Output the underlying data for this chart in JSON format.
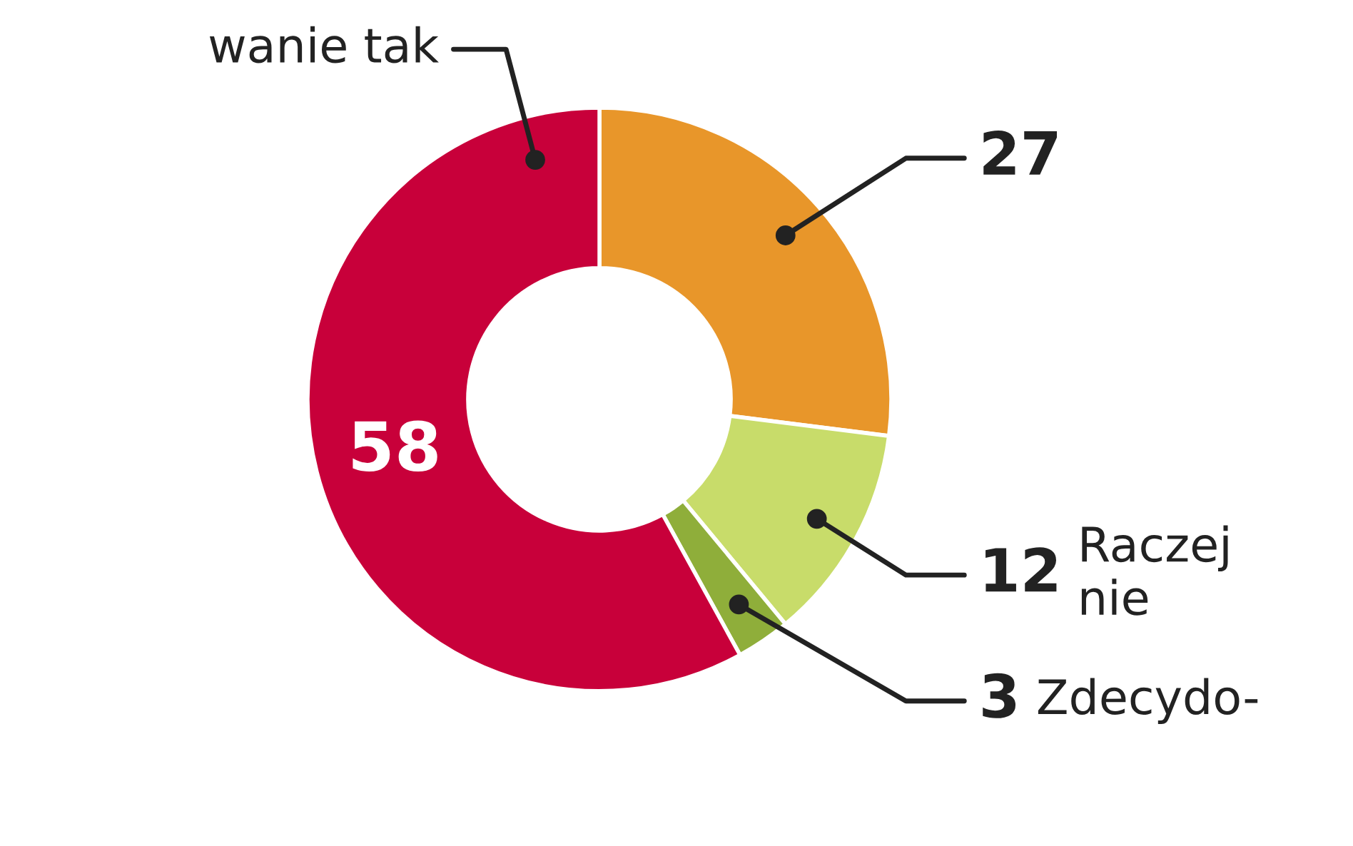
{
  "chart_data": {
    "type": "donut",
    "categories": [
      null,
      "Raczej\nnie",
      "Zdecydo-",
      "wanie tak"
    ],
    "values": [
      27,
      12,
      3,
      58
    ],
    "colors": [
      "#e8962a",
      "#c8dc6a",
      "#8fae3a",
      "#c8003a"
    ],
    "data_labels": true
  }
}
